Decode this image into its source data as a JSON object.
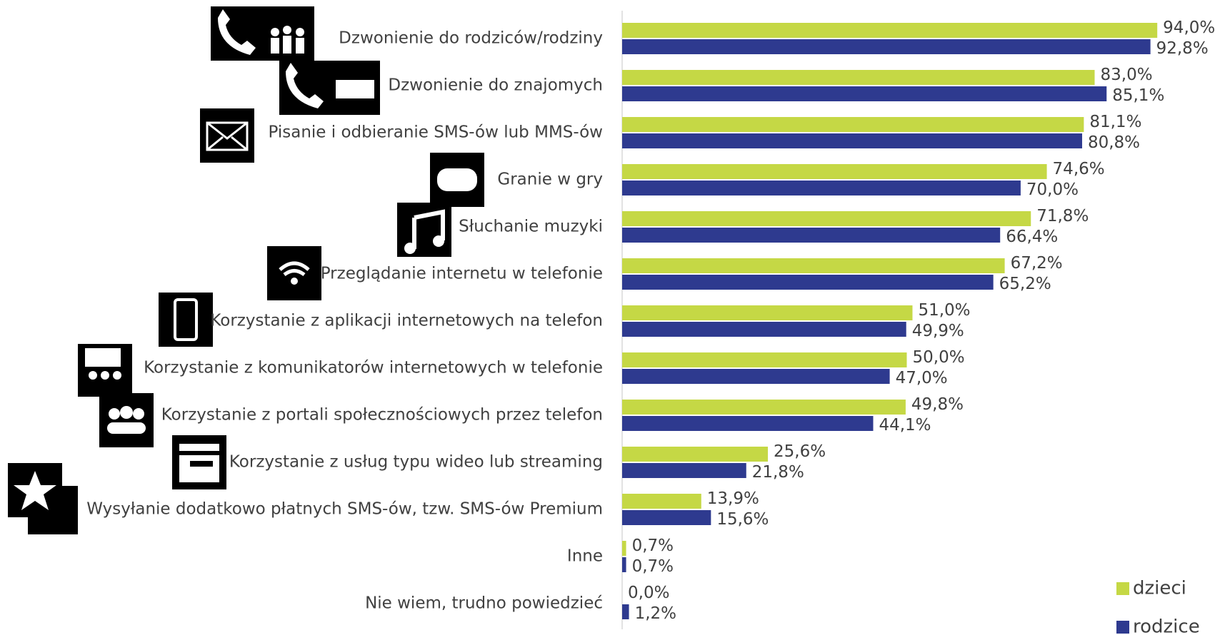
{
  "chart_data": {
    "type": "bar",
    "orientation": "horizontal",
    "categories": [
      "Dzwonienie do rodziców/rodziny",
      "Dzwonienie do znajomych",
      "Pisanie i odbieranie SMS-ów lub MMS-ów",
      "Granie w gry",
      "Słuchanie muzyki",
      "Przeglądanie internetu w telefonie",
      "Korzystanie z aplikacji internetowych na telefon",
      "Korzystanie z komunikatorów internetowych w telefonie",
      "Korzystanie z portali społecznościowych przez telefon",
      "Korzystanie z usług typu wideo lub streaming",
      "Wysyłanie dodatkowo płatnych SMS-ów, tzw. SMS-ów Premium",
      "Inne",
      "Nie wiem, trudno powiedzieć"
    ],
    "series": [
      {
        "name": "dzieci",
        "color": "#c5d845",
        "values": [
          94.0,
          83.0,
          81.1,
          74.6,
          71.8,
          67.2,
          51.0,
          50.0,
          49.8,
          25.6,
          13.9,
          0.7,
          0.0
        ],
        "value_labels": [
          "94,0%",
          "83,0%",
          "81,1%",
          "74,6%",
          "71,8%",
          "67,2%",
          "51,0%",
          "50,0%",
          "49,8%",
          "25,6%",
          "13,9%",
          "0,7%",
          "0,0%"
        ]
      },
      {
        "name": "rodzice",
        "color": "#2e3a8f",
        "values": [
          92.8,
          85.1,
          80.8,
          70.0,
          66.4,
          65.2,
          49.9,
          47.0,
          44.1,
          21.8,
          15.6,
          0.7,
          1.2
        ],
        "value_labels": [
          "92,8%",
          "85,1%",
          "80,8%",
          "70,0%",
          "66,4%",
          "65,2%",
          "49,9%",
          "47,0%",
          "44,1%",
          "21,8%",
          "15,6%",
          "0,7%",
          "1,2%"
        ]
      }
    ],
    "xlim": [
      0,
      100
    ],
    "legend": "bottom-right"
  }
}
